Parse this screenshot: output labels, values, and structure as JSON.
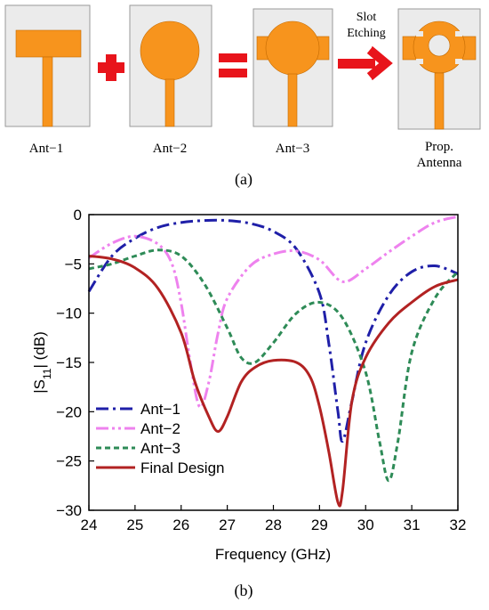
{
  "panel_a": {
    "caption": "(a)",
    "antennas": [
      {
        "label": "Ant−1",
        "shape": "rectangle-patch"
      },
      {
        "label": "Ant−2",
        "shape": "circle-patch"
      },
      {
        "label": "Ant−3",
        "shape": "rect-circle-patch"
      },
      {
        "label_lines": [
          "Prop.",
          "Antenna"
        ],
        "shape": "slotted-patch"
      }
    ],
    "operators": [
      "plus",
      "equals"
    ],
    "arrow_label_lines": [
      "Slot",
      "Etching"
    ],
    "colors": {
      "patch": "#f7941d",
      "substrate": "#ebebeb",
      "operator": "#e8141b"
    }
  },
  "panel_b": {
    "caption": "(b)"
  },
  "chart_data": {
    "type": "line",
    "xlabel": "Frequency (GHz)",
    "ylabel": "|S11| (dB)",
    "xlim": [
      24,
      32
    ],
    "ylim": [
      -30,
      0
    ],
    "xticks": [
      24,
      25,
      26,
      27,
      28,
      29,
      30,
      31,
      32
    ],
    "yticks": [
      0,
      -5,
      -10,
      -15,
      -20,
      -25,
      -30
    ],
    "grid": false,
    "legend_position": "bottom-left",
    "series": [
      {
        "name": "Ant−1",
        "color": "#1f1fa8",
        "style": "dashdot",
        "x": [
          24,
          24.5,
          25,
          25.5,
          26,
          26.5,
          27,
          27.5,
          28,
          28.5,
          29,
          29.2,
          29.4,
          29.5,
          29.7,
          30,
          30.5,
          31,
          31.5,
          32
        ],
        "y": [
          -7.8,
          -4.2,
          -2.4,
          -1.3,
          -0.8,
          -0.6,
          -0.6,
          -0.9,
          -1.7,
          -3.5,
          -8,
          -13,
          -20,
          -23,
          -19,
          -13,
          -8.2,
          -5.8,
          -5.2,
          -6
        ]
      },
      {
        "name": "Ant−2",
        "color": "#ee82ee",
        "style": "dashdotdot",
        "x": [
          24,
          24.5,
          25,
          25.5,
          25.8,
          26,
          26.2,
          26.4,
          26.6,
          26.8,
          27,
          27.5,
          28,
          28.5,
          29,
          29.5,
          30,
          30.5,
          31,
          31.5,
          32
        ],
        "y": [
          -4.4,
          -2.9,
          -2.2,
          -3,
          -5,
          -9,
          -15,
          -19.5,
          -17,
          -12,
          -8.5,
          -5.2,
          -4,
          -3.7,
          -4.6,
          -6.8,
          -5.5,
          -3.8,
          -2.2,
          -0.8,
          -0.2
        ]
      },
      {
        "name": "Ant−3",
        "color": "#2e8b57",
        "style": "dashed",
        "x": [
          24,
          24.5,
          25,
          25.5,
          26,
          26.5,
          27,
          27.3,
          27.6,
          28,
          28.5,
          29,
          29.5,
          30,
          30.3,
          30.5,
          30.7,
          31,
          31.5,
          32
        ],
        "y": [
          -5.5,
          -5,
          -4.2,
          -3.6,
          -4.2,
          -7,
          -11.5,
          -14.5,
          -15,
          -13,
          -10,
          -8.9,
          -10.5,
          -16,
          -23,
          -27,
          -23,
          -14,
          -8.5,
          -5.8
        ]
      },
      {
        "name": "Final Design",
        "color": "#b22222",
        "style": "solid",
        "x": [
          24,
          24.5,
          25,
          25.5,
          26,
          26.3,
          26.6,
          26.8,
          27,
          27.3,
          27.6,
          28,
          28.5,
          28.8,
          29,
          29.2,
          29.4,
          29.5,
          29.7,
          30,
          30.5,
          31,
          31.5,
          32
        ],
        "y": [
          -4.2,
          -4.5,
          -5.4,
          -7.5,
          -12,
          -17,
          -20.5,
          -22,
          -20.5,
          -17,
          -15.5,
          -14.8,
          -15,
          -16.5,
          -19.5,
          -24,
          -29.2,
          -28,
          -19,
          -14.5,
          -11,
          -8.9,
          -7.3,
          -6.6
        ]
      }
    ]
  }
}
